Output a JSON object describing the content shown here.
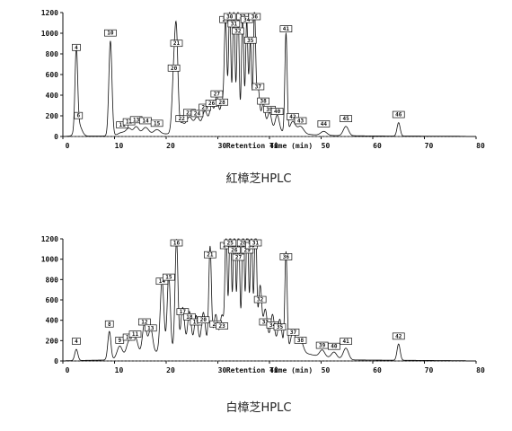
{
  "chart_data": [
    {
      "type": "line",
      "title": "紅樟芝HPLC",
      "xlabel": "Retention Time (min)",
      "ylabel": "",
      "xlim": [
        0,
        80
      ],
      "ylim": [
        0,
        1200
      ],
      "xticks": [
        0,
        10,
        20,
        30,
        40,
        50,
        60,
        70,
        80
      ],
      "yticks": [
        0,
        200,
        400,
        600,
        800,
        1000,
        1200
      ],
      "baseline": [
        [
          0,
          2
        ],
        [
          9,
          5
        ],
        [
          20,
          25
        ],
        [
          30,
          55
        ],
        [
          35,
          75
        ],
        [
          42,
          45
        ],
        [
          50,
          10
        ],
        [
          60,
          5
        ],
        [
          80,
          2
        ]
      ],
      "peaks": [
        {
          "rt": 2.6,
          "h": 780,
          "w": 0.25,
          "label": "4"
        },
        {
          "rt": 3.0,
          "h": 120,
          "w": 0.6,
          "label": "6"
        },
        {
          "rt": 9.2,
          "h": 920,
          "w": 0.3,
          "label": "10"
        },
        {
          "rt": 11.5,
          "h": 30,
          "w": 0.8,
          "label": "11"
        },
        {
          "rt": 12.8,
          "h": 60,
          "w": 0.5,
          "label": "12"
        },
        {
          "rt": 14.2,
          "h": 80,
          "w": 0.5,
          "label": "13"
        },
        {
          "rt": 16.0,
          "h": 70,
          "w": 0.6,
          "label": "14"
        },
        {
          "rt": 18.2,
          "h": 45,
          "w": 0.6,
          "label": "15"
        },
        {
          "rt": 21.5,
          "h": 580,
          "w": 0.35,
          "label": "20"
        },
        {
          "rt": 22.0,
          "h": 820,
          "w": 0.3,
          "label": "21"
        },
        {
          "rt": 23.0,
          "h": 90,
          "w": 0.5,
          "label": "22"
        },
        {
          "rt": 24.5,
          "h": 150,
          "w": 0.6,
          "label": "23"
        },
        {
          "rt": 26.0,
          "h": 140,
          "w": 0.5,
          "label": "24"
        },
        {
          "rt": 27.5,
          "h": 200,
          "w": 0.5,
          "label": "25"
        },
        {
          "rt": 28.8,
          "h": 240,
          "w": 0.4,
          "label": "26"
        },
        {
          "rt": 29.8,
          "h": 330,
          "w": 0.35,
          "label": "27"
        },
        {
          "rt": 30.8,
          "h": 250,
          "w": 0.35,
          "label": "28"
        },
        {
          "rt": 31.5,
          "h": 1050,
          "w": 0.25,
          "label": "29"
        },
        {
          "rt": 32.3,
          "h": 1200,
          "w": 0.22,
          "label": "30"
        },
        {
          "rt": 33.1,
          "h": 1180,
          "w": 0.22,
          "label": "31"
        },
        {
          "rt": 33.9,
          "h": 1200,
          "w": 0.22,
          "label": "32"
        },
        {
          "rt": 34.8,
          "h": 1100,
          "w": 0.22,
          "label": "33"
        },
        {
          "rt": 35.6,
          "h": 1050,
          "w": 0.22,
          "label": "34"
        },
        {
          "rt": 36.3,
          "h": 850,
          "w": 0.22,
          "label": "35"
        },
        {
          "rt": 37.1,
          "h": 1150,
          "w": 0.22,
          "label": "36"
        },
        {
          "rt": 37.8,
          "h": 400,
          "w": 0.3,
          "label": "37"
        },
        {
          "rt": 38.8,
          "h": 260,
          "w": 0.35,
          "label": "38"
        },
        {
          "rt": 40.0,
          "h": 180,
          "w": 0.4,
          "label": "39"
        },
        {
          "rt": 41.5,
          "h": 160,
          "w": 0.4,
          "label": "40"
        },
        {
          "rt": 43.2,
          "h": 960,
          "w": 0.22,
          "label": "41"
        },
        {
          "rt": 44.5,
          "h": 110,
          "w": 0.5,
          "label": "42"
        },
        {
          "rt": 46.0,
          "h": 70,
          "w": 0.6,
          "label": "43"
        },
        {
          "rt": 50.5,
          "h": 40,
          "w": 0.6,
          "label": "44"
        },
        {
          "rt": 54.8,
          "h": 90,
          "w": 0.5,
          "label": "45"
        },
        {
          "rt": 65.0,
          "h": 130,
          "w": 0.3,
          "label": "46"
        }
      ]
    },
    {
      "type": "line",
      "title": "白樟芝HPLC",
      "xlabel": "Retention Time (min)",
      "ylabel": "",
      "xlim": [
        0,
        80
      ],
      "ylim": [
        0,
        1200
      ],
      "xticks": [
        0,
        10,
        20,
        30,
        40,
        50,
        60,
        70,
        80
      ],
      "yticks": [
        0,
        200,
        400,
        600,
        800,
        1000,
        1200
      ],
      "baseline": [
        [
          0,
          2
        ],
        [
          9,
          10
        ],
        [
          15,
          60
        ],
        [
          20,
          100
        ],
        [
          30,
          180
        ],
        [
          35,
          250
        ],
        [
          40,
          200
        ],
        [
          45,
          100
        ],
        [
          50,
          40
        ],
        [
          56,
          10
        ],
        [
          80,
          2
        ]
      ],
      "peaks": [
        {
          "rt": 2.6,
          "h": 110,
          "w": 0.3,
          "label": "4"
        },
        {
          "rt": 9.0,
          "h": 280,
          "w": 0.3,
          "label": "8"
        },
        {
          "rt": 11.0,
          "h": 120,
          "w": 0.5,
          "label": "9"
        },
        {
          "rt": 12.8,
          "h": 150,
          "w": 0.5,
          "label": "10"
        },
        {
          "rt": 14.0,
          "h": 180,
          "w": 0.5,
          "label": "11"
        },
        {
          "rt": 15.8,
          "h": 300,
          "w": 0.4,
          "label": "12"
        },
        {
          "rt": 17.0,
          "h": 240,
          "w": 0.4,
          "label": "13"
        },
        {
          "rt": 19.2,
          "h": 700,
          "w": 0.35,
          "label": "14"
        },
        {
          "rt": 20.5,
          "h": 740,
          "w": 0.3,
          "label": "15"
        },
        {
          "rt": 22.0,
          "h": 1080,
          "w": 0.28,
          "label": "16"
        },
        {
          "rt": 23.2,
          "h": 400,
          "w": 0.35,
          "label": "17"
        },
        {
          "rt": 24.5,
          "h": 350,
          "w": 0.35,
          "label": "18"
        },
        {
          "rt": 25.8,
          "h": 300,
          "w": 0.35,
          "label": "19"
        },
        {
          "rt": 27.2,
          "h": 320,
          "w": 0.35,
          "label": "20"
        },
        {
          "rt": 28.5,
          "h": 960,
          "w": 0.25,
          "label": "21"
        },
        {
          "rt": 29.6,
          "h": 280,
          "w": 0.35,
          "label": "22"
        },
        {
          "rt": 30.8,
          "h": 260,
          "w": 0.35,
          "label": "23"
        },
        {
          "rt": 31.6,
          "h": 1050,
          "w": 0.22,
          "label": "24"
        },
        {
          "rt": 32.4,
          "h": 1200,
          "w": 0.22,
          "label": "25"
        },
        {
          "rt": 33.2,
          "h": 1200,
          "w": 0.22,
          "label": "26"
        },
        {
          "rt": 34.0,
          "h": 1150,
          "w": 0.22,
          "label": "27"
        },
        {
          "rt": 34.9,
          "h": 1080,
          "w": 0.22,
          "label": "28"
        },
        {
          "rt": 35.7,
          "h": 1200,
          "w": 0.22,
          "label": "29"
        },
        {
          "rt": 36.5,
          "h": 1050,
          "w": 0.22,
          "label": "30"
        },
        {
          "rt": 37.3,
          "h": 1200,
          "w": 0.22,
          "label": "31"
        },
        {
          "rt": 38.2,
          "h": 520,
          "w": 0.3,
          "label": "32"
        },
        {
          "rt": 39.2,
          "h": 300,
          "w": 0.35,
          "label": "33"
        },
        {
          "rt": 40.6,
          "h": 270,
          "w": 0.35,
          "label": "34"
        },
        {
          "rt": 42.0,
          "h": 250,
          "w": 0.35,
          "label": "35"
        },
        {
          "rt": 43.2,
          "h": 940,
          "w": 0.22,
          "label": "36"
        },
        {
          "rt": 44.6,
          "h": 200,
          "w": 0.4,
          "label": "37"
        },
        {
          "rt": 46.0,
          "h": 120,
          "w": 0.5,
          "label": "38"
        },
        {
          "rt": 50.2,
          "h": 70,
          "w": 0.5,
          "label": "39"
        },
        {
          "rt": 52.5,
          "h": 60,
          "w": 0.5,
          "label": "40"
        },
        {
          "rt": 54.8,
          "h": 110,
          "w": 0.5,
          "label": "41"
        },
        {
          "rt": 65.0,
          "h": 160,
          "w": 0.3,
          "label": "42"
        }
      ]
    }
  ]
}
